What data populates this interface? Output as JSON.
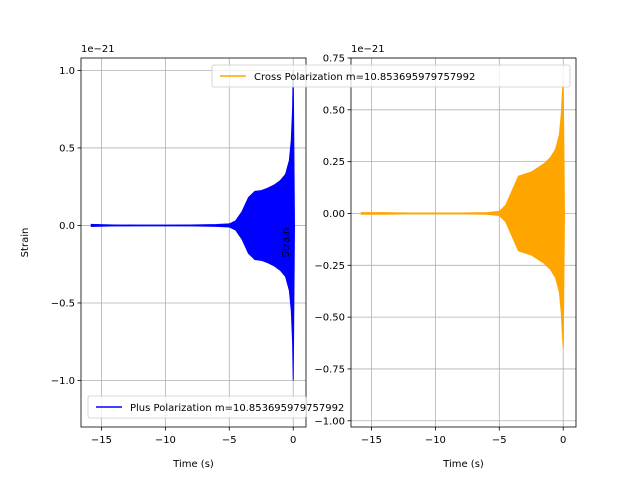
{
  "chart_data": [
    {
      "type": "line",
      "xlabel": "Time (s)",
      "ylabel": "Strain",
      "offset_text": "1e−21",
      "xlim": [
        -16.6,
        1.0
      ],
      "ylim": [
        -1.3,
        1.08
      ],
      "xticks": [
        -15,
        -10,
        -5,
        0
      ],
      "xtick_labels": [
        "−15",
        "−10",
        "−5",
        "0"
      ],
      "yticks": [
        -1.0,
        -0.5,
        0.0,
        0.5,
        1.0
      ],
      "ytick_labels": [
        "−1.0",
        "−0.5",
        "0.0",
        "0.5",
        "1.0"
      ],
      "grid": true,
      "legend_location": "lower left",
      "series": [
        {
          "name": "Plus Polarization m=10.853695979757992",
          "color": "#0000ff",
          "x": [
            -15.8,
            -14.0,
            -12.0,
            -10.0,
            -8.0,
            -6.0,
            -5.0,
            -4.5,
            -4.0,
            -3.5,
            -3.0,
            -2.5,
            -2.0,
            -1.5,
            -1.0,
            -0.6,
            -0.3,
            -0.15,
            -0.05,
            0.0,
            0.1
          ],
          "envelope": [
            0.007,
            0.003,
            0.002,
            0.002,
            0.003,
            0.006,
            0.01,
            0.03,
            0.09,
            0.18,
            0.22,
            0.225,
            0.24,
            0.26,
            0.29,
            0.33,
            0.42,
            0.55,
            0.75,
            1.0,
            0.0
          ]
        }
      ]
    },
    {
      "type": "line",
      "xlabel": "Time (s)",
      "ylabel": "Strain",
      "offset_text": "1e−21",
      "xlim": [
        -16.6,
        1.0
      ],
      "ylim": [
        -1.03,
        0.75
      ],
      "xticks": [
        -15,
        -10,
        -5,
        0
      ],
      "xtick_labels": [
        "−15",
        "−10",
        "−5",
        "0"
      ],
      "yticks": [
        -1.0,
        -0.75,
        -0.5,
        -0.25,
        0.0,
        0.25,
        0.5,
        0.75
      ],
      "ytick_labels": [
        "−1.00",
        "−0.75",
        "−0.50",
        "−0.25",
        "0.00",
        "0.25",
        "0.50",
        "0.75"
      ],
      "grid": true,
      "legend_location": "upper right",
      "series": [
        {
          "name": "Cross Polarization m=10.853695979757992",
          "color": "#ffa500",
          "x": [
            -15.8,
            -14.0,
            -12.0,
            -10.0,
            -8.0,
            -6.0,
            -5.0,
            -4.5,
            -4.0,
            -3.5,
            -3.0,
            -2.5,
            -2.0,
            -1.5,
            -1.0,
            -0.6,
            -0.3,
            -0.15,
            -0.05,
            0.0,
            0.1
          ],
          "envelope": [
            0.004,
            0.004,
            0.002,
            0.002,
            0.002,
            0.004,
            0.01,
            0.04,
            0.11,
            0.18,
            0.19,
            0.2,
            0.22,
            0.24,
            0.27,
            0.31,
            0.38,
            0.48,
            0.6,
            0.65,
            0.0
          ]
        }
      ]
    }
  ]
}
